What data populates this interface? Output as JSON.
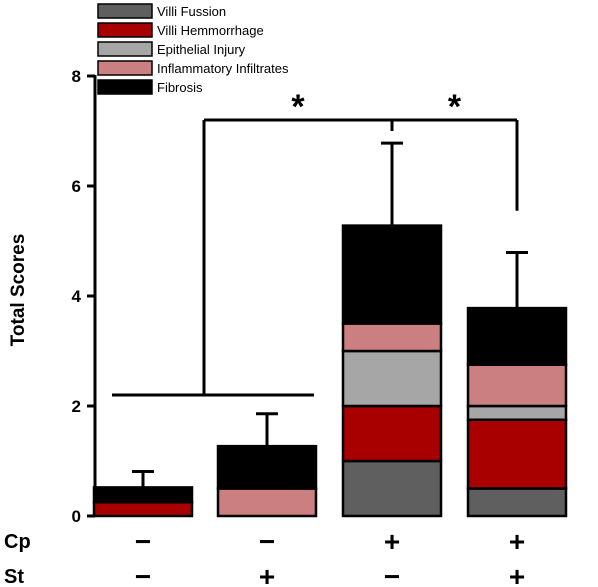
{
  "chart_data": {
    "type": "bar",
    "stacked": true,
    "ylabel": "Total Scores",
    "ylim": [
      0,
      8
    ],
    "yticks": [
      "0",
      "2",
      "4",
      "6",
      "8"
    ],
    "legend_position": "top-left",
    "categories": [
      "Cp-/St-",
      "Cp-/St+",
      "Cp+/St-",
      "Cp+/St+"
    ],
    "factors": [
      {
        "label": "Cp",
        "signs": [
          "−",
          "−",
          "+",
          "+"
        ]
      },
      {
        "label": "St",
        "signs": [
          "−",
          "+",
          "−",
          "+"
        ]
      }
    ],
    "series": [
      {
        "name": "Villi Fussion",
        "color": "#5f5f5f",
        "values": [
          0,
          0,
          1.0,
          0.5
        ]
      },
      {
        "name": "Villi Hemmorrhage",
        "color": "#a80000",
        "values": [
          0.25,
          0,
          1.0,
          1.25
        ]
      },
      {
        "name": "Epithelial Injury",
        "color": "#a6a6a6",
        "values": [
          0,
          0,
          1.0,
          0.25
        ]
      },
      {
        "name": "Inflammatory Infiltrates",
        "color": "#cc7f80",
        "values": [
          0,
          0.5,
          0.5,
          0.75
        ]
      },
      {
        "name": "Fibrosis",
        "color": "#000000",
        "values": [
          0.27,
          0.77,
          1.78,
          1.03
        ]
      }
    ],
    "totals": [
      0.52,
      1.27,
      5.28,
      3.78
    ],
    "error_upper": [
      0.81,
      1.86,
      6.78,
      4.79
    ],
    "significance": [
      {
        "label": "*",
        "from": "Cp-",
        "to": "Cp+/St-"
      },
      {
        "label": "*",
        "from": "Cp+/St-",
        "to": "Cp+/St+"
      }
    ]
  }
}
